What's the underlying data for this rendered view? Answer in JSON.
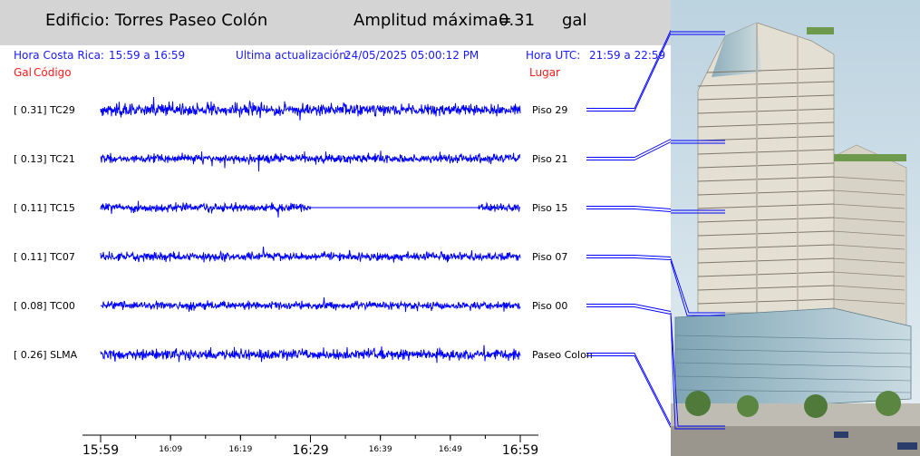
{
  "header": {
    "building_label": "Edificio: Torres Paseo Colón",
    "amp_label": "Amplitud máxima=",
    "amp_value": "0.31",
    "amp_unit": "gal"
  },
  "info": {
    "local_label": "Hora Costa Rica:",
    "local_range": "15:59 a 16:59",
    "update_label": "Ultima actualización:",
    "update_value": "24/05/2025 05:00:12 PM",
    "utc_label": "Hora UTC:",
    "utc_range": "21:59 a 22:59"
  },
  "columns": {
    "gal": "Gal",
    "code": "Código",
    "place": "Lugar"
  },
  "colors": {
    "trace": "#0000ff",
    "header_bg": "#d4d4d4",
    "info_text": "#1a1aff",
    "column_text": "#ff1a1a"
  },
  "chart_data": {
    "type": "line",
    "x_range": [
      "15:59",
      "16:59"
    ],
    "channels": [
      {
        "gal": "[  0.31] TC29",
        "code": "TC29",
        "amplitude": 0.31,
        "place": "Piso 29"
      },
      {
        "gal": "[  0.13] TC21",
        "code": "TC21",
        "amplitude": 0.13,
        "place": "Piso 21"
      },
      {
        "gal": "[  0.11] TC15",
        "code": "TC15",
        "amplitude": 0.11,
        "place": "Piso 15",
        "gap": [
          "16:29",
          "16:53"
        ]
      },
      {
        "gal": "[  0.11] TC07",
        "code": "TC07",
        "amplitude": 0.11,
        "place": "Piso 07"
      },
      {
        "gal": "[  0.08] TC00",
        "code": "TC00",
        "amplitude": 0.08,
        "place": "Piso 00"
      },
      {
        "gal": "[  0.26] SLMA",
        "code": "SLMA",
        "amplitude": 0.26,
        "place": "Paseo Colon"
      }
    ],
    "x_ticks_major": [
      "15:59",
      "16:29",
      "16:59"
    ],
    "x_ticks_minor": [
      "16:09",
      "16:19",
      "16:39",
      "16:49"
    ]
  },
  "photo": {
    "description_icon": "building-photo",
    "sky": "#cfe0ea"
  }
}
